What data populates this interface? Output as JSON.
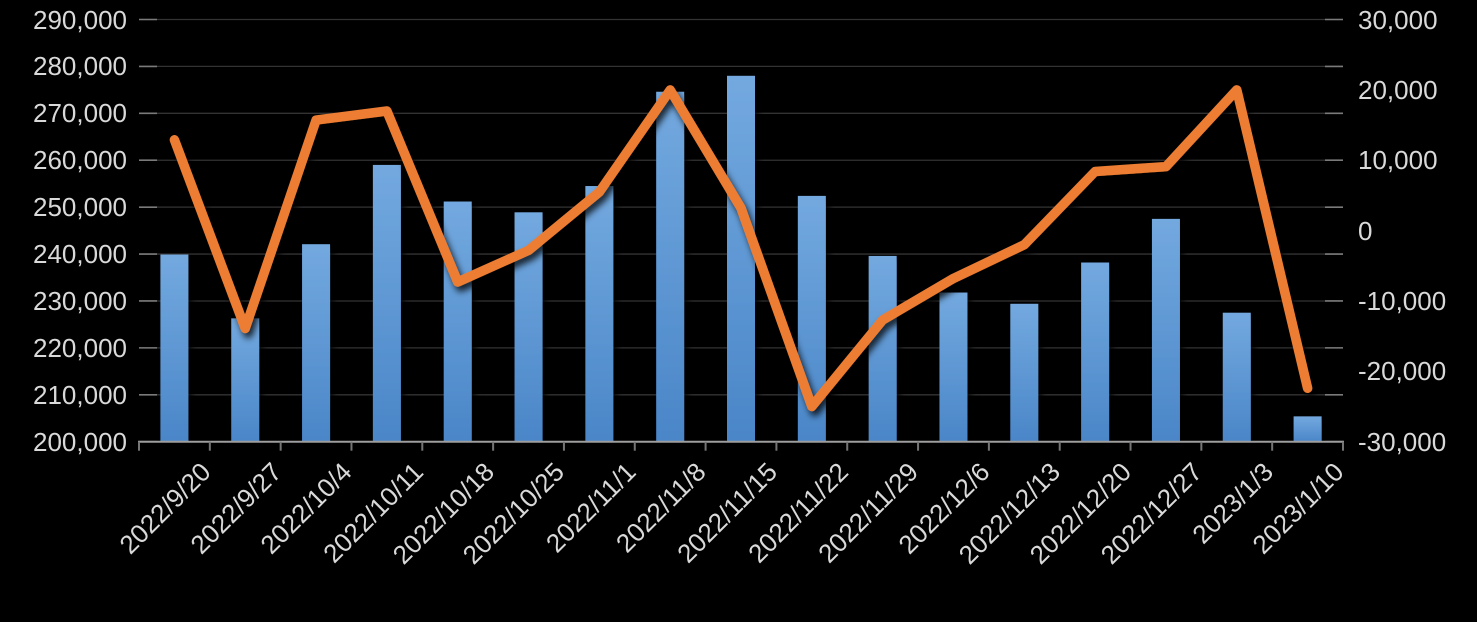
{
  "chart_data": {
    "type": "combo",
    "categories": [
      "2022/9/20",
      "2022/9/27",
      "2022/10/4",
      "2022/10/11",
      "2022/10/18",
      "2022/10/25",
      "2022/11/1",
      "2022/11/8",
      "2022/11/15",
      "2022/11/22",
      "2022/11/29",
      "2022/12/6",
      "2022/12/13",
      "2022/12/20",
      "2022/12/27",
      "2023/1/3",
      "2023/1/10"
    ],
    "series": [
      {
        "name": "bars",
        "type": "bar",
        "axis": "left",
        "color_top": "#73A9DF",
        "color_bottom": "#4A86C8",
        "values": [
          239900,
          226300,
          242100,
          259000,
          251200,
          248900,
          254500,
          274600,
          278000,
          252400,
          239600,
          231800,
          229400,
          238200,
          247500,
          227500,
          205400
        ]
      },
      {
        "name": "line",
        "type": "line",
        "axis": "right",
        "color": "#ED7D31",
        "values": [
          12900,
          -13900,
          15700,
          17000,
          -7300,
          -2800,
          5500,
          20000,
          3200,
          -25000,
          -12700,
          -6800,
          -2000,
          8400,
          9100,
          20000,
          -22400
        ]
      }
    ],
    "left_axis": {
      "min": 200000,
      "max": 290000,
      "step": 10000,
      "tick_labels": [
        "290,000",
        "280,000",
        "270,000",
        "260,000",
        "250,000",
        "240,000",
        "230,000",
        "220,000",
        "210,000",
        "200,000"
      ]
    },
    "right_axis": {
      "min": -30000,
      "max": 30000,
      "step": 10000,
      "tick_labels": [
        "30,000",
        "20,000",
        "10,000",
        "0",
        "-10,000",
        "-20,000",
        "-30,000"
      ]
    },
    "grid": true,
    "legend": "none"
  },
  "colors": {
    "background": "#000000",
    "text": "#D9D9D9",
    "gridline": "#333333",
    "grid_stub": "#7A7A7A",
    "axis_line": "#9E9E9E",
    "axis_tick": "#757575"
  }
}
